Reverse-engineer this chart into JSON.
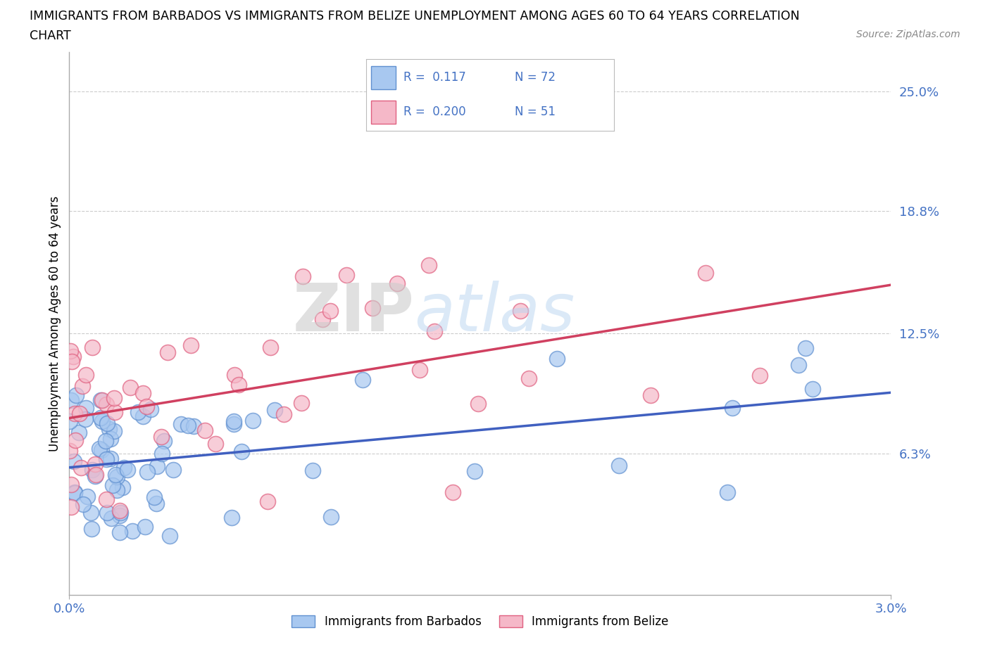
{
  "title_line1": "IMMIGRANTS FROM BARBADOS VS IMMIGRANTS FROM BELIZE UNEMPLOYMENT AMONG AGES 60 TO 64 YEARS CORRELATION",
  "title_line2": "CHART",
  "source_text": "Source: ZipAtlas.com",
  "ylabel": "Unemployment Among Ages 60 to 64 years",
  "xlim": [
    0.0,
    0.03
  ],
  "ylim": [
    -0.01,
    0.27
  ],
  "ytick_labels": [
    "6.3%",
    "12.5%",
    "18.8%",
    "25.0%"
  ],
  "ytick_values": [
    0.063,
    0.125,
    0.188,
    0.25
  ],
  "xtick_labels": [
    "0.0%",
    "3.0%"
  ],
  "xtick_values": [
    0.0,
    0.03
  ],
  "barbados_color": "#a8c8f0",
  "belize_color": "#f5b8c8",
  "barbados_edge": "#6090d0",
  "belize_edge": "#e06080",
  "barbados_line_color": "#4060c0",
  "belize_line_color": "#d04060",
  "legend_R_barbados": "0.117",
  "legend_N_barbados": "72",
  "legend_R_belize": "0.200",
  "legend_N_belize": "51",
  "barbados_label": "Immigrants from Barbados",
  "belize_label": "Immigrants from Belize",
  "watermark_zip": "ZIP",
  "watermark_atlas": "atlas",
  "background_color": "#ffffff",
  "grid_color": "#cccccc",
  "tick_color": "#4472c4",
  "right_label_color": "#4472c4"
}
